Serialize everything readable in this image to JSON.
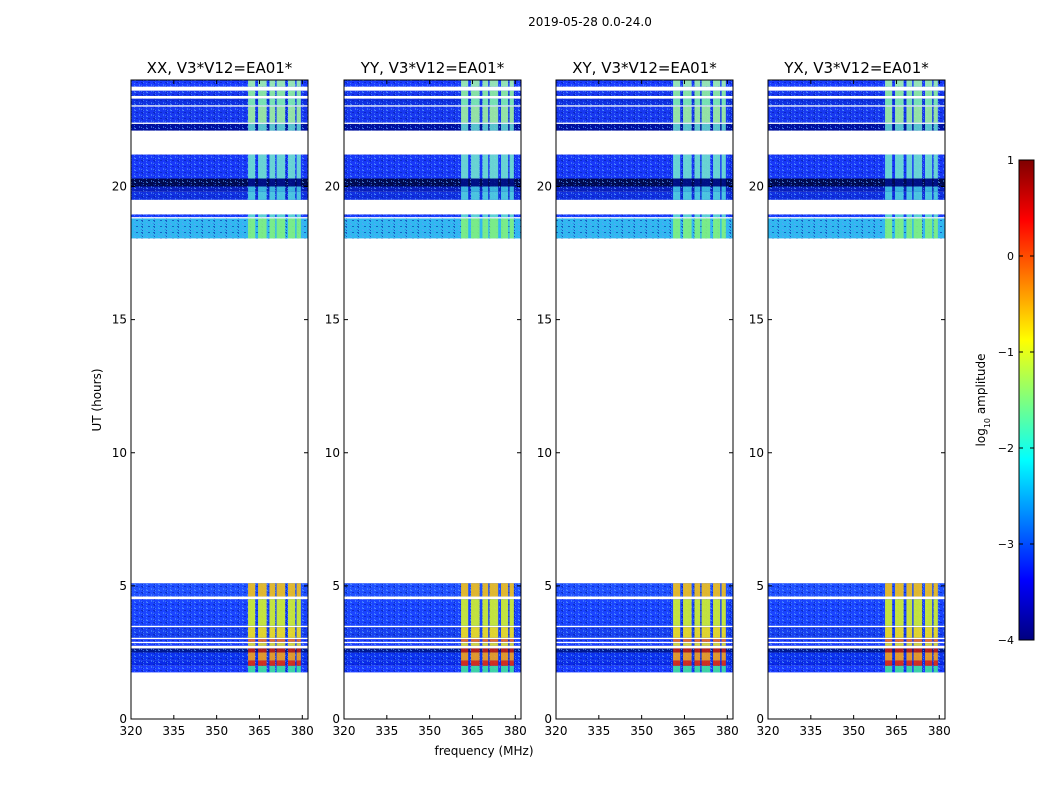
{
  "chart_data": {
    "type": "heatmap",
    "suptitle": "2019-05-28 0.0-24.0",
    "xlabel": "frequency (MHz)",
    "ylabel": "UT (hours)",
    "xlim": [
      320,
      382
    ],
    "ylim": [
      0,
      24
    ],
    "xticks": [
      "320",
      "335",
      "350",
      "365",
      "380"
    ],
    "yticks": [
      "0",
      "5",
      "10",
      "15",
      "20"
    ],
    "panels": [
      {
        "title": "XX, V3*V12=EA01*"
      },
      {
        "title": "YY, V3*V12=EA01*"
      },
      {
        "title": "XY, V3*V12=EA01*"
      },
      {
        "title": "YX, V3*V12=EA01*"
      }
    ],
    "data_bands": [
      {
        "ut": [
          1.75,
          2.0
        ],
        "base": "#1a3cff",
        "hot": "#40e0a0"
      },
      {
        "ut": [
          2.0,
          2.2
        ],
        "base": "#0a2ae8",
        "hot": "#e03010"
      },
      {
        "ut": [
          2.2,
          2.5
        ],
        "base": "#0d34f0",
        "hot": "#f0a020"
      },
      {
        "ut": [
          2.5,
          2.65
        ],
        "base": "#001890",
        "hot": "#c02010"
      },
      {
        "ut": [
          2.75,
          2.85
        ],
        "base": "#1a3cff",
        "hot": "#e0e030"
      },
      {
        "ut": [
          2.9,
          3.0
        ],
        "base": "#1a3cff",
        "hot": "#f07020"
      },
      {
        "ut": [
          3.05,
          3.45
        ],
        "base": "#1840f0",
        "hot": "#f0e020"
      },
      {
        "ut": [
          3.5,
          4.5
        ],
        "base": "#1a44ff",
        "hot": "#d0f030"
      },
      {
        "ut": [
          4.6,
          5.1
        ],
        "base": "#2050ff",
        "hot": "#f0c020"
      },
      {
        "ut": [
          18.05,
          18.8
        ],
        "base": "#30b8f0",
        "hot": "#80f080"
      },
      {
        "ut": [
          18.85,
          18.95
        ],
        "base": "#1a3cff",
        "hot": "#60e0d0"
      },
      {
        "ut": [
          19.5,
          19.8
        ],
        "base": "#1030e0",
        "hot": "#50d0e0"
      },
      {
        "ut": [
          19.8,
          20.0
        ],
        "base": "#0a20c0",
        "hot": "#40c0e0"
      },
      {
        "ut": [
          20.0,
          20.3
        ],
        "base": "#000a50",
        "hot": "#00108a"
      },
      {
        "ut": [
          20.3,
          21.2
        ],
        "base": "#1838f8",
        "hot": "#70e0d0"
      },
      {
        "ut": [
          22.1,
          22.35
        ],
        "base": "#0010a0",
        "hot": "#60d0d0"
      },
      {
        "ut": [
          22.4,
          23.0
        ],
        "base": "#1838f0",
        "hot": "#a0f0a0"
      },
      {
        "ut": [
          23.05,
          23.3
        ],
        "base": "#1030e0",
        "hot": "#80f0b0"
      },
      {
        "ut": [
          23.4,
          23.6
        ],
        "base": "#1838f0",
        "hot": "#90f0a0"
      },
      {
        "ut": [
          23.75,
          24.0
        ],
        "base": "#1a3cff",
        "hot": "#a0f0b0"
      }
    ],
    "hot_columns_mhz": [
      [
        361,
        363.5
      ],
      [
        364.5,
        367.5
      ],
      [
        368.5,
        370.5
      ],
      [
        371,
        374
      ],
      [
        375,
        377.5
      ],
      [
        378,
        379.5
      ]
    ],
    "colorbar": {
      "label": "log10 amplitude",
      "label_base": "log",
      "label_sub": "10",
      "label_rest": " amplitude",
      "min": -4,
      "max": 1,
      "ticks": [
        "−4",
        "−3",
        "−2",
        "−1",
        "0",
        "1"
      ],
      "colormap": [
        "#00007f",
        "#0000ff",
        "#007fff",
        "#00ffff",
        "#7fff7f",
        "#ffff00",
        "#ff7f00",
        "#ff0000",
        "#7f0000"
      ]
    }
  }
}
